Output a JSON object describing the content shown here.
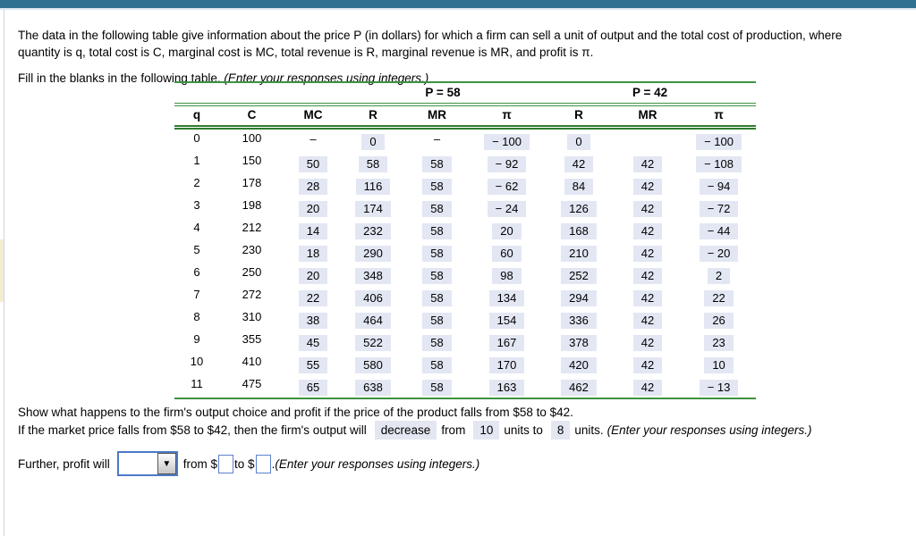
{
  "intro": {
    "text": "The data in the following table give information about the price P (in dollars) for which a firm can sell a unit of output and the total cost of production, where quantity is q, total cost is C, marginal cost is MC, total revenue is R, marginal revenue is MR, and profit is π.",
    "fill_prompt": "Fill in the blanks in the following table. ",
    "fill_note": "(Enter your responses using integers.)"
  },
  "table": {
    "group_headers": [
      "P = 58",
      "P = 42"
    ],
    "columns": [
      "q",
      "C",
      "MC",
      "R",
      "MR",
      "π",
      "R",
      "MR",
      "π"
    ],
    "rows": [
      {
        "q": "0",
        "C": "100",
        "cells": [
          {
            "v": "–",
            "hl": false
          },
          {
            "v": "0",
            "hl": true
          },
          {
            "v": "–",
            "hl": false
          },
          {
            "v": "− 100",
            "hl": true
          },
          {
            "v": "0",
            "hl": true
          },
          {
            "v": "",
            "hl": false
          },
          {
            "v": "− 100",
            "hl": true
          }
        ]
      },
      {
        "q": "1",
        "C": "150",
        "cells": [
          {
            "v": "50",
            "hl": true
          },
          {
            "v": "58",
            "hl": true
          },
          {
            "v": "58",
            "hl": true
          },
          {
            "v": "− 92",
            "hl": true
          },
          {
            "v": "42",
            "hl": true
          },
          {
            "v": "42",
            "hl": true
          },
          {
            "v": "− 108",
            "hl": true
          }
        ]
      },
      {
        "q": "2",
        "C": "178",
        "cells": [
          {
            "v": "28",
            "hl": true
          },
          {
            "v": "116",
            "hl": true
          },
          {
            "v": "58",
            "hl": true
          },
          {
            "v": "− 62",
            "hl": true
          },
          {
            "v": "84",
            "hl": true
          },
          {
            "v": "42",
            "hl": true
          },
          {
            "v": "− 94",
            "hl": true
          }
        ]
      },
      {
        "q": "3",
        "C": "198",
        "cells": [
          {
            "v": "20",
            "hl": true
          },
          {
            "v": "174",
            "hl": true
          },
          {
            "v": "58",
            "hl": true
          },
          {
            "v": "− 24",
            "hl": true
          },
          {
            "v": "126",
            "hl": true
          },
          {
            "v": "42",
            "hl": true
          },
          {
            "v": "− 72",
            "hl": true
          }
        ]
      },
      {
        "q": "4",
        "C": "212",
        "cells": [
          {
            "v": "14",
            "hl": true
          },
          {
            "v": "232",
            "hl": true
          },
          {
            "v": "58",
            "hl": true
          },
          {
            "v": "20",
            "hl": true
          },
          {
            "v": "168",
            "hl": true
          },
          {
            "v": "42",
            "hl": true
          },
          {
            "v": "− 44",
            "hl": true
          }
        ]
      },
      {
        "q": "5",
        "C": "230",
        "cells": [
          {
            "v": "18",
            "hl": true
          },
          {
            "v": "290",
            "hl": true
          },
          {
            "v": "58",
            "hl": true
          },
          {
            "v": "60",
            "hl": true
          },
          {
            "v": "210",
            "hl": true
          },
          {
            "v": "42",
            "hl": true
          },
          {
            "v": "− 20",
            "hl": true
          }
        ]
      },
      {
        "q": "6",
        "C": "250",
        "cells": [
          {
            "v": "20",
            "hl": true
          },
          {
            "v": "348",
            "hl": true
          },
          {
            "v": "58",
            "hl": true
          },
          {
            "v": "98",
            "hl": true
          },
          {
            "v": "252",
            "hl": true
          },
          {
            "v": "42",
            "hl": true
          },
          {
            "v": "2",
            "hl": true
          }
        ]
      },
      {
        "q": "7",
        "C": "272",
        "cells": [
          {
            "v": "22",
            "hl": true
          },
          {
            "v": "406",
            "hl": true
          },
          {
            "v": "58",
            "hl": true
          },
          {
            "v": "134",
            "hl": true
          },
          {
            "v": "294",
            "hl": true
          },
          {
            "v": "42",
            "hl": true
          },
          {
            "v": "22",
            "hl": true
          }
        ]
      },
      {
        "q": "8",
        "C": "310",
        "cells": [
          {
            "v": "38",
            "hl": true
          },
          {
            "v": "464",
            "hl": true
          },
          {
            "v": "58",
            "hl": true
          },
          {
            "v": "154",
            "hl": true
          },
          {
            "v": "336",
            "hl": true
          },
          {
            "v": "42",
            "hl": true
          },
          {
            "v": "26",
            "hl": true
          }
        ]
      },
      {
        "q": "9",
        "C": "355",
        "cells": [
          {
            "v": "45",
            "hl": true
          },
          {
            "v": "522",
            "hl": true
          },
          {
            "v": "58",
            "hl": true
          },
          {
            "v": "167",
            "hl": true
          },
          {
            "v": "378",
            "hl": true
          },
          {
            "v": "42",
            "hl": true
          },
          {
            "v": "23",
            "hl": true
          }
        ]
      },
      {
        "q": "10",
        "C": "410",
        "cells": [
          {
            "v": "55",
            "hl": true
          },
          {
            "v": "580",
            "hl": true
          },
          {
            "v": "58",
            "hl": true
          },
          {
            "v": "170",
            "hl": true
          },
          {
            "v": "420",
            "hl": true
          },
          {
            "v": "42",
            "hl": true
          },
          {
            "v": "10",
            "hl": true
          }
        ]
      },
      {
        "q": "11",
        "C": "475",
        "cells": [
          {
            "v": "65",
            "hl": true
          },
          {
            "v": "638",
            "hl": true
          },
          {
            "v": "58",
            "hl": true
          },
          {
            "v": "163",
            "hl": true
          },
          {
            "v": "462",
            "hl": true
          },
          {
            "v": "42",
            "hl": true
          },
          {
            "v": "− 13",
            "hl": true
          }
        ]
      }
    ]
  },
  "outro": {
    "show_text": "Show what happens to the firm's output choice and profit if the price of the product falls from $58 to $42.",
    "q1": {
      "lead": "If the market price falls from $58 to $42, then the firm's output will",
      "answer_direction": "decrease",
      "mid1": "from",
      "answer_from": "10",
      "mid2": "units to",
      "answer_to": "8",
      "tail": "units. ",
      "note": "(Enter your responses using integers.)"
    },
    "q2": {
      "lead": "Further, profit will",
      "select_value": "",
      "from_label": "from $",
      "from_value": "",
      "to_label": "to $",
      "to_value": "",
      "period": ". ",
      "note": "(Enter your responses using integers.)"
    }
  },
  "colors": {
    "top_bar": "#2f7191",
    "table_rule_green": "#3e9142",
    "answer_highlight": "#e3e7f3",
    "input_border_blue": "#4d78c8",
    "left_marker_beige": "#f3edd0"
  }
}
